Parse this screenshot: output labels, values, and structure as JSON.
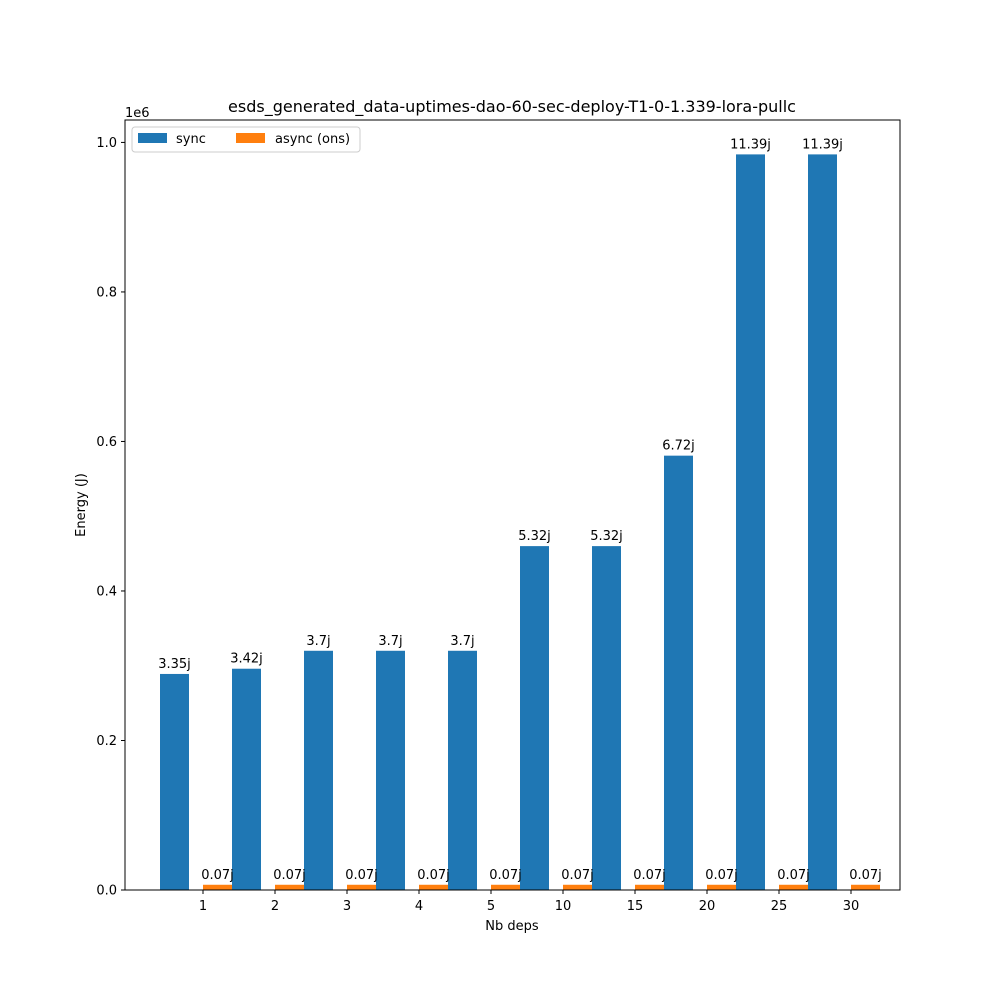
{
  "chart_data": {
    "type": "bar",
    "title": "esds_generated_data-uptimes-dao-60-sec-deploy-T1-0-1.339-lora-pullc",
    "xlabel": "Nb deps",
    "ylabel": "Energy (J)",
    "y_offset_label": "1e6",
    "ylim": [
      0,
      1.03
    ],
    "yticks": [
      "0.0",
      "0.2",
      "0.4",
      "0.6",
      "0.8",
      "1.0"
    ],
    "categories": [
      "1",
      "2",
      "3",
      "4",
      "5",
      "10",
      "15",
      "20",
      "25",
      "30"
    ],
    "legend_position": "top-left",
    "grid": false,
    "series": [
      {
        "name": "sync",
        "color": "#1f77b4",
        "values": [
          0.289,
          0.296,
          0.32,
          0.32,
          0.32,
          0.46,
          0.46,
          0.581,
          0.984,
          0.984
        ],
        "labels": [
          "3.35j",
          "3.42j",
          "3.7j",
          "3.7j",
          "3.7j",
          "5.32j",
          "5.32j",
          "6.72j",
          "11.39j",
          "11.39j"
        ]
      },
      {
        "name": "async (ons)",
        "color": "#ff7f0e",
        "values": [
          0.007,
          0.007,
          0.007,
          0.007,
          0.007,
          0.007,
          0.007,
          0.007,
          0.007,
          0.007
        ],
        "labels": [
          "0.07j",
          "0.07j",
          "0.07j",
          "0.07j",
          "0.07j",
          "0.07j",
          "0.07j",
          "0.07j",
          "0.07j",
          "0.07j"
        ]
      }
    ]
  }
}
